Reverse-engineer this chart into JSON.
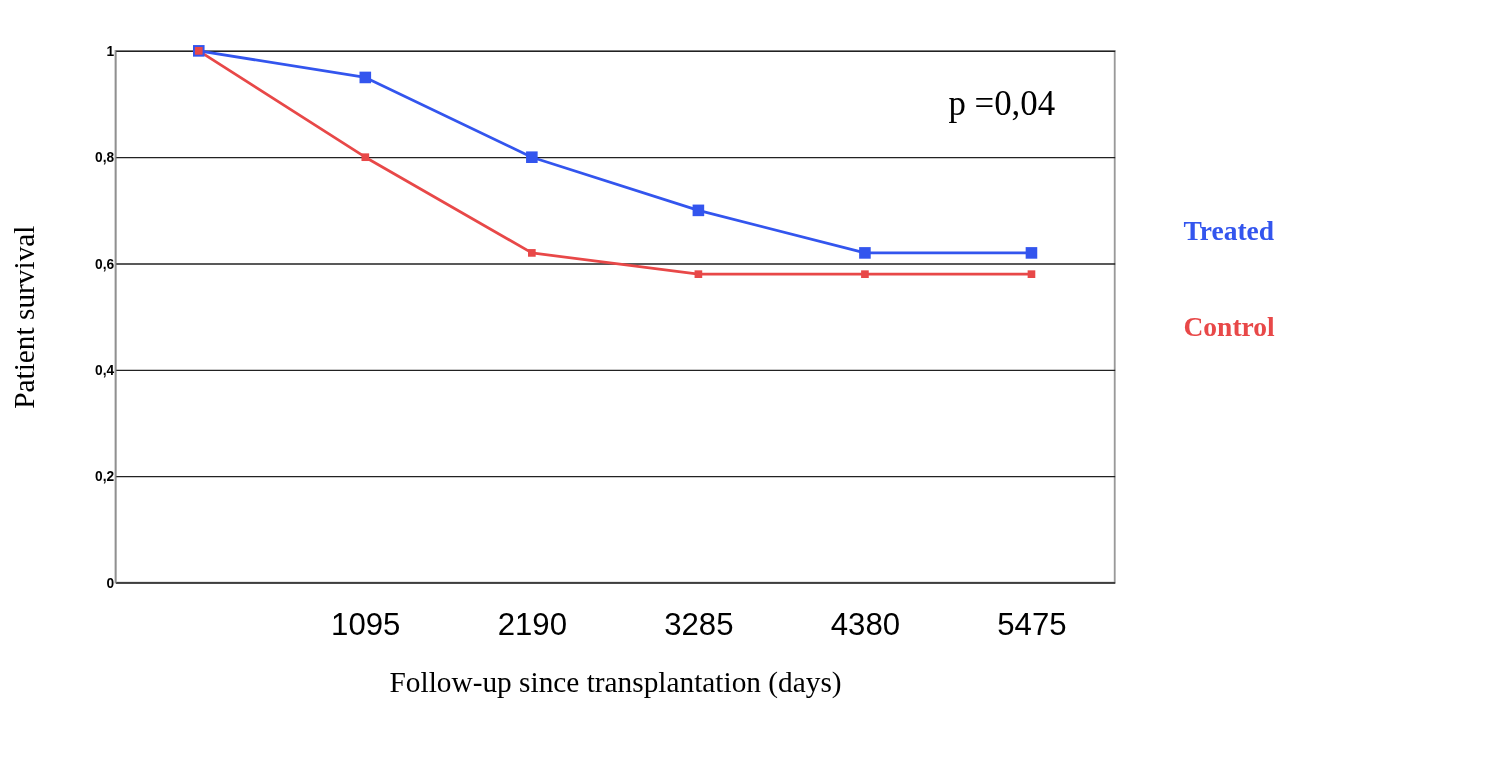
{
  "chart_data": {
    "type": "line",
    "xlabel": "Follow-up since transplantation (days)",
    "ylabel": "Patient survival",
    "categories": [
      null,
      "1095",
      "2190",
      "3285",
      "4380",
      "5475"
    ],
    "series": [
      {
        "name": "Treated",
        "color": "#3355ee",
        "values": [
          1,
          0.95,
          0.8,
          0.7,
          0.62,
          0.62
        ]
      },
      {
        "name": "Control",
        "color": "#e84848",
        "values": [
          1,
          0.8,
          0.62,
          0.58,
          0.58,
          0.58
        ]
      }
    ],
    "ylim": [
      0,
      1
    ],
    "yticks": [
      {
        "value": 0,
        "label": "0"
      },
      {
        "value": 0.2,
        "label": "0,2"
      },
      {
        "value": 0.4,
        "label": "0,4"
      },
      {
        "value": 0.6,
        "label": "0,6"
      },
      {
        "value": 0.8,
        "label": "0,8"
      },
      {
        "value": 1,
        "label": "1"
      }
    ],
    "grid": "y",
    "legend": "right",
    "marker": "square",
    "line_style": "solid",
    "annotations": [
      "p =0,04"
    ]
  }
}
